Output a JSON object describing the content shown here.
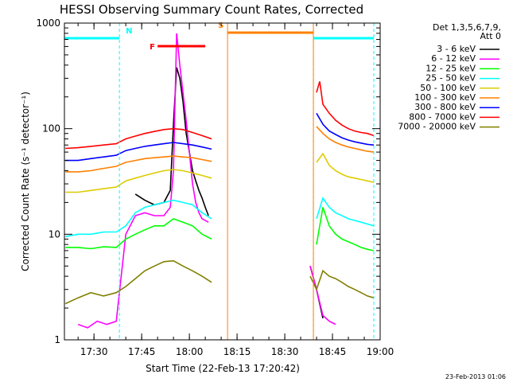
{
  "chart_data": {
    "type": "line",
    "title": "HESSI Observing Summary Count Rates, Corrected",
    "xlabel": "Start Time (22-Feb-13 17:20:42)",
    "ylabel": "Corrected Count Rate (s⁻¹ detector⁻¹)",
    "yscale": "log",
    "ylim": [
      1,
      1000
    ],
    "xlim": [
      "17:20:42",
      "19:00:00"
    ],
    "x_ticks": [
      "17:30",
      "17:45",
      "18:00",
      "18:15",
      "18:30",
      "18:45",
      "19:00"
    ],
    "y_ticks": [
      "1",
      "10",
      "100",
      "1000"
    ],
    "legend_position": "right",
    "legend_header": [
      "Det 1,3,5,6,7,9,",
      "Att 0"
    ],
    "footer_date": "23-Feb-2013 01:06",
    "series": [
      {
        "name": "3 - 6 keV",
        "color": "#000000",
        "x": [
          "17:43",
          "17:46",
          "17:49",
          "17:52",
          "17:54",
          "17:55",
          "17:56",
          "17:57",
          "17:58",
          "17:59",
          "18:00",
          "18:01",
          "18:02",
          "18:03",
          "18:04",
          "18:05",
          "18:06",
          "18:38",
          "18:40",
          "18:42"
        ],
        "y": [
          24,
          21,
          19,
          20,
          26,
          110,
          380,
          300,
          180,
          90,
          60,
          40,
          32,
          26,
          22,
          18,
          15,
          5,
          3,
          1.6
        ]
      },
      {
        "name": "6 - 12 keV",
        "color": "#ff00ff",
        "x": [
          "17:25",
          "17:28",
          "17:31",
          "17:34",
          "17:37",
          "17:40",
          "17:43",
          "17:46",
          "17:49",
          "17:52",
          "17:54",
          "17:55",
          "17:56",
          "17:57",
          "17:58",
          "17:59",
          "18:00",
          "18:01",
          "18:02",
          "18:03",
          "18:04",
          "18:06",
          "18:38",
          "18:40",
          "18:42",
          "18:44",
          "18:46"
        ],
        "y": [
          1.4,
          1.3,
          1.5,
          1.4,
          1.5,
          10,
          15,
          16,
          15,
          15,
          18,
          40,
          800,
          400,
          220,
          120,
          60,
          30,
          20,
          16,
          14,
          13,
          5,
          3,
          1.7,
          1.5,
          1.4
        ]
      },
      {
        "name": "12 - 25 keV",
        "color": "#00ff00",
        "x": [
          "17:21",
          "17:25",
          "17:29",
          "17:33",
          "17:37",
          "17:40",
          "17:43",
          "17:46",
          "17:49",
          "17:52",
          "17:55",
          "17:58",
          "18:01",
          "18:04",
          "18:07",
          "18:40",
          "18:42",
          "18:44",
          "18:46",
          "18:48",
          "18:50",
          "18:52",
          "18:54",
          "18:56",
          "18:58"
        ],
        "y": [
          7.5,
          7.5,
          7.3,
          7.6,
          7.5,
          9,
          10,
          11,
          12,
          12,
          14,
          13,
          12,
          10,
          9,
          8,
          18,
          12,
          10,
          9,
          8.5,
          8,
          7.5,
          7.2,
          7
        ]
      },
      {
        "name": "25 - 50 keV",
        "color": "#00ffff",
        "x": [
          "17:21",
          "17:25",
          "17:29",
          "17:33",
          "17:37",
          "17:40",
          "17:43",
          "17:46",
          "17:49",
          "17:52",
          "17:55",
          "17:58",
          "18:01",
          "18:04",
          "18:07",
          "18:40",
          "18:42",
          "18:44",
          "18:46",
          "18:48",
          "18:50",
          "18:52",
          "18:54",
          "18:56",
          "18:58"
        ],
        "y": [
          9.5,
          10,
          10,
          10.5,
          10.5,
          12,
          16,
          18,
          19,
          20,
          21,
          20,
          19,
          16,
          14,
          14,
          22,
          18,
          16,
          15,
          14,
          13.5,
          13,
          12.5,
          12
        ]
      },
      {
        "name": "50 - 100 keV",
        "color": "#ddcc00",
        "x": [
          "17:21",
          "17:25",
          "17:29",
          "17:33",
          "17:37",
          "17:40",
          "17:43",
          "17:46",
          "17:49",
          "17:52",
          "17:55",
          "17:58",
          "18:01",
          "18:04",
          "18:07",
          "18:40",
          "18:42",
          "18:44",
          "18:46",
          "18:48",
          "18:50",
          "18:52",
          "18:54",
          "18:56",
          "18:58"
        ],
        "y": [
          25,
          25,
          26,
          27,
          28,
          32,
          34,
          36,
          38,
          40,
          41,
          40,
          38,
          36,
          34,
          48,
          58,
          45,
          40,
          37,
          35,
          34,
          33,
          32,
          31
        ]
      },
      {
        "name": "100 - 300 keV",
        "color": "#ff8000",
        "x": [
          "17:21",
          "17:25",
          "17:29",
          "17:33",
          "17:37",
          "17:40",
          "17:43",
          "17:46",
          "17:49",
          "17:52",
          "17:55",
          "17:58",
          "18:01",
          "18:04",
          "18:07",
          "18:40",
          "18:42",
          "18:44",
          "18:46",
          "18:48",
          "18:50",
          "18:52",
          "18:54",
          "18:56",
          "18:58"
        ],
        "y": [
          39,
          39,
          40,
          42,
          44,
          48,
          50,
          52,
          53,
          54,
          55,
          54,
          53,
          51,
          49,
          105,
          90,
          80,
          74,
          70,
          67,
          65,
          63,
          61,
          60
        ]
      },
      {
        "name": "300 - 800 keV",
        "color": "#0000ff",
        "x": [
          "17:21",
          "17:25",
          "17:29",
          "17:33",
          "17:37",
          "17:40",
          "17:43",
          "17:46",
          "17:49",
          "17:52",
          "17:55",
          "17:58",
          "18:01",
          "18:04",
          "18:07",
          "18:40",
          "18:42",
          "18:44",
          "18:46",
          "18:48",
          "18:50",
          "18:52",
          "18:54",
          "18:56",
          "18:58"
        ],
        "y": [
          50,
          50,
          52,
          54,
          56,
          62,
          65,
          68,
          70,
          72,
          74,
          72,
          70,
          67,
          64,
          140,
          110,
          95,
          88,
          82,
          78,
          75,
          73,
          71,
          70
        ]
      },
      {
        "name": "800 - 7000 keV",
        "color": "#ff0000",
        "x": [
          "17:21",
          "17:25",
          "17:29",
          "17:33",
          "17:37",
          "17:40",
          "17:43",
          "17:46",
          "17:49",
          "17:52",
          "17:55",
          "17:58",
          "18:01",
          "18:04",
          "18:07",
          "18:40",
          "18:41",
          "18:42",
          "18:44",
          "18:46",
          "18:48",
          "18:50",
          "18:52",
          "18:54",
          "18:56",
          "18:58"
        ],
        "y": [
          65,
          66,
          68,
          70,
          72,
          80,
          85,
          90,
          94,
          98,
          100,
          98,
          92,
          86,
          80,
          220,
          280,
          170,
          140,
          120,
          108,
          100,
          95,
          92,
          90,
          86
        ]
      },
      {
        "name": "7000 - 20000 keV",
        "color": "#808000",
        "x": [
          "17:21",
          "17:25",
          "17:29",
          "17:33",
          "17:37",
          "17:40",
          "17:43",
          "17:46",
          "17:49",
          "17:52",
          "17:55",
          "17:58",
          "18:01",
          "18:04",
          "18:07",
          "18:38",
          "18:40",
          "18:42",
          "18:44",
          "18:46",
          "18:48",
          "18:50",
          "18:52",
          "18:54",
          "18:56",
          "18:58"
        ],
        "y": [
          2.2,
          2.5,
          2.8,
          2.6,
          2.8,
          3.2,
          3.8,
          4.5,
          5,
          5.5,
          5.6,
          5,
          4.5,
          4,
          3.5,
          4,
          3,
          4.5,
          4,
          3.8,
          3.5,
          3.2,
          3,
          2.8,
          2.6,
          2.5
        ]
      }
    ],
    "annotations": [
      {
        "label": "N",
        "color": "#00ffff",
        "segments": [
          [
            "17:20:42",
            "17:38"
          ],
          [
            "18:39",
            "18:58"
          ]
        ]
      },
      {
        "label": "F",
        "color": "#ff0000",
        "segments": [
          [
            "17:50",
            "18:05"
          ]
        ]
      },
      {
        "label": "S",
        "color": "#ff8000",
        "segments": [
          [
            "18:12",
            "18:39"
          ]
        ]
      }
    ]
  }
}
